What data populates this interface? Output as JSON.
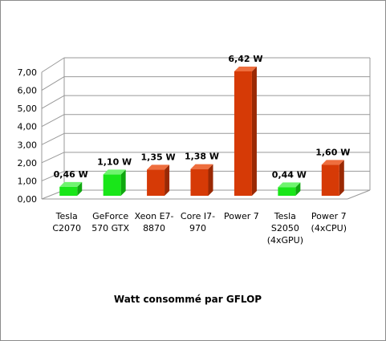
{
  "chart_data": {
    "type": "bar",
    "title": "Watt consommé par GFLOP",
    "xlabel": "",
    "ylabel": "",
    "ylim": [
      0,
      7
    ],
    "yticks": [
      "0,00",
      "1,00",
      "2,00",
      "3,00",
      "4,00",
      "5,00",
      "6,00",
      "7,00"
    ],
    "grid": true,
    "three_d": true,
    "categories": [
      [
        "Tesla",
        "C2070"
      ],
      [
        "GeForce",
        "570 GTX"
      ],
      [
        "Xeon E7-",
        "8870"
      ],
      [
        "Core I7-",
        "970"
      ],
      [
        "Power 7"
      ],
      [
        "Tesla",
        "S2050",
        "(4xGPU)"
      ],
      [
        "Power 7",
        "(4xCPU)"
      ]
    ],
    "values": [
      0.46,
      1.1,
      1.35,
      1.38,
      6.42,
      0.44,
      1.6
    ],
    "data_labels": [
      "0,46 W",
      "1,10 W",
      "1,35 W",
      "1,38 W",
      "6,42 W",
      "0,44 W",
      "1,60 W"
    ],
    "bar_colors": [
      "green",
      "green",
      "red",
      "red",
      "red",
      "green",
      "red"
    ],
    "colors": {
      "green": {
        "front": "#19e619",
        "side": "#10a810",
        "top": "#6ff46f"
      },
      "red": {
        "front": "#d63a06",
        "side": "#9a2904",
        "top": "#ee6e3e"
      },
      "grid": "#999999",
      "wall": "#ffffff"
    }
  }
}
